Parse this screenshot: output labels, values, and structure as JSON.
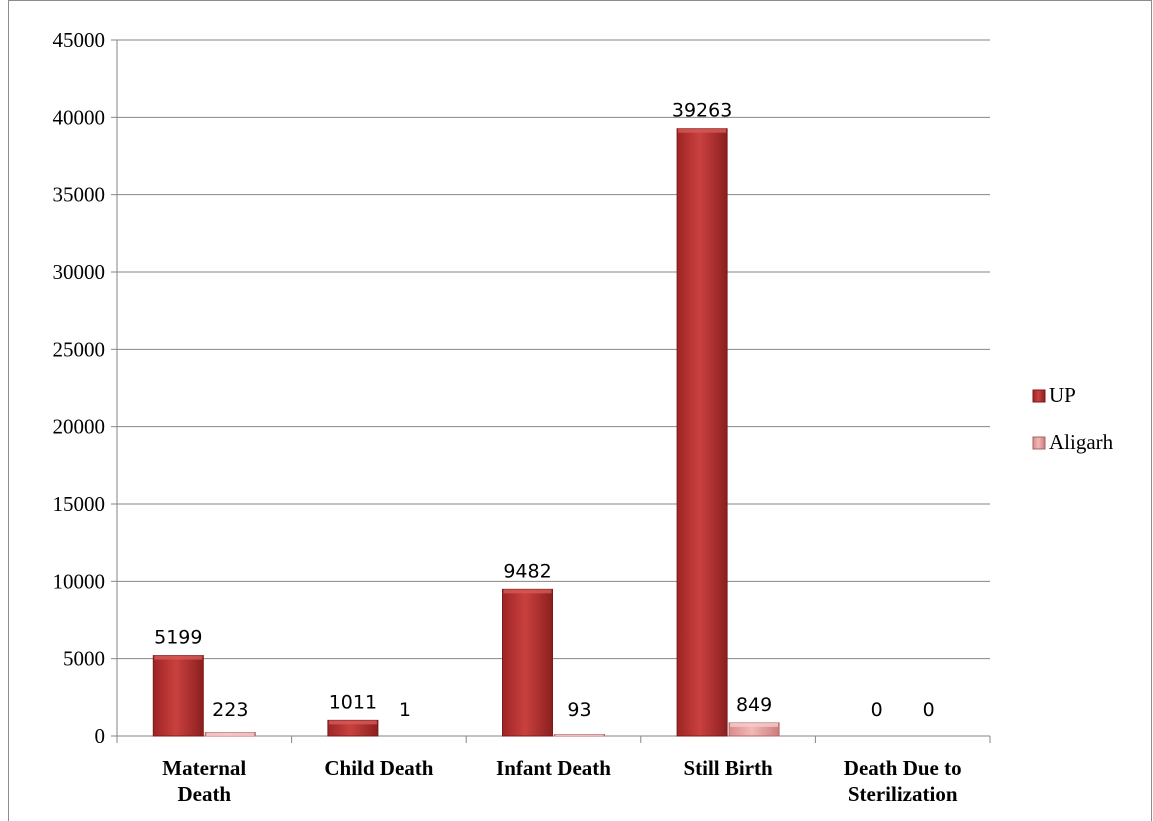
{
  "chart_data": {
    "type": "bar",
    "categories": [
      "Maternal Death",
      "Child Death",
      "Infant Death",
      "Still Birth",
      "Death Due to Sterilization"
    ],
    "category_lines": [
      [
        "Maternal",
        "Death"
      ],
      [
        "Child Death"
      ],
      [
        "Infant Death"
      ],
      [
        "Still Birth"
      ],
      [
        "Death Due to",
        "Sterilization"
      ]
    ],
    "series": [
      {
        "name": "UP",
        "values": [
          5199,
          1011,
          9482,
          39263,
          0
        ],
        "color": "#b52f2f"
      },
      {
        "name": "Aligarh",
        "values": [
          223,
          1,
          93,
          849,
          0
        ],
        "color": "#e8a0a0"
      }
    ],
    "ylim": [
      0,
      45000
    ],
    "yticks": [
      0,
      5000,
      10000,
      15000,
      20000,
      25000,
      30000,
      35000,
      40000,
      45000
    ],
    "grid": true,
    "legend_position": "right",
    "title": "",
    "xlabel": "",
    "ylabel": ""
  }
}
